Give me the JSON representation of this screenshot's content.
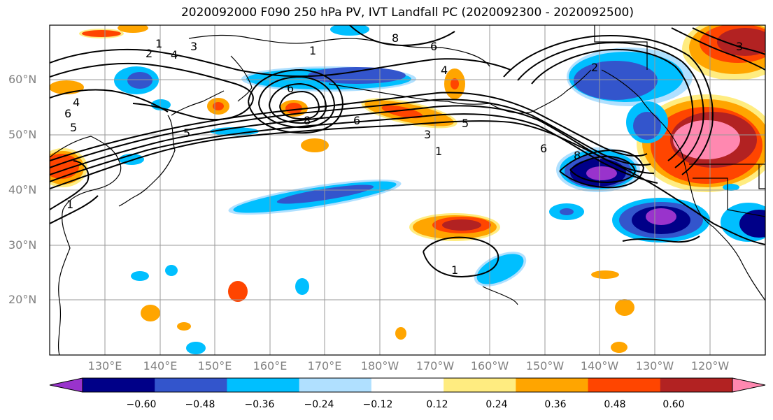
{
  "title": "2020092000 F090 250 hPa PV, IVT Landfall PC (2020092300 - 2020092500)",
  "lat_labels": [
    "60°N",
    "50°N",
    "40°N",
    "30°N",
    "20°N"
  ],
  "lon_labels": [
    "130°E",
    "140°E",
    "150°E",
    "160°E",
    "170°E",
    "180°W",
    "170°W",
    "160°W",
    "150°W",
    "140°W",
    "130°W",
    "120°W"
  ],
  "contour_labels": [
    "1",
    "2",
    "4",
    "3",
    "8",
    "6",
    "5",
    "4",
    "6",
    "1",
    "8",
    "6",
    "5",
    "3",
    "1",
    "6",
    "8",
    "1",
    "3",
    "4",
    "5",
    "6",
    "2",
    "1"
  ],
  "colorbar": {
    "colors": [
      "#9933cc",
      "#000088",
      "#3355cc",
      "#00bfff",
      "#b0e0ff",
      "#ffffff",
      "#ffec80",
      "#ffa500",
      "#ff4500",
      "#b22222",
      "#ff88b0"
    ],
    "tick_labels": [
      "−0.60",
      "−0.48",
      "−0.36",
      "−0.24",
      "−0.12",
      "0.12",
      "0.24",
      "0.36",
      "0.48",
      "0.60"
    ]
  },
  "fill_colors": {
    "pink": "#ff88b0",
    "darkred": "#b22222",
    "red": "#ff4500",
    "orange": "#ffa500",
    "yellow": "#ffec80",
    "lightblue": "#b0e0ff",
    "skyblue": "#00bfff",
    "blue": "#3355cc",
    "navy": "#000088",
    "purple": "#9933cc"
  }
}
